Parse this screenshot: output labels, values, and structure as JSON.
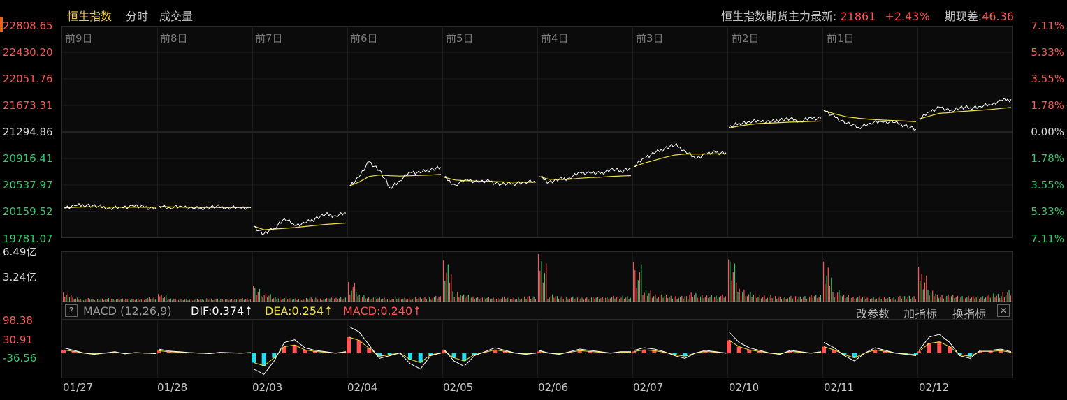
{
  "tabs": [
    {
      "label": "恒生指数",
      "active": true
    },
    {
      "label": "分时",
      "active": false
    },
    {
      "label": "成交量",
      "active": false
    }
  ],
  "futures": {
    "label": "恒生指数期货主力最新:",
    "price": "21861",
    "change": "+2.43%",
    "basis_label": "期现差:",
    "basis": "46.36"
  },
  "colors": {
    "up": "#ff5555",
    "down": "#2ecc6f",
    "price_line": "#ffffff",
    "avg_line": "#f0e040",
    "dea_line": "#f0e040",
    "macd_pos": "#ff5555",
    "macd_neg": "#22ddee"
  },
  "chart_data": [
    {
      "type": "line",
      "name": "price",
      "y_ticks_left": [
        "22808.65",
        "22430.20",
        "22051.76",
        "21673.31",
        "21294.86",
        "20916.41",
        "20537.97",
        "20159.52",
        "19781.07"
      ],
      "y_ticks_right": [
        "7.11%",
        "5.33%",
        "3.55%",
        "1.78%",
        "0.00%",
        "1.78%",
        "3.55%",
        "5.33%",
        "7.11%"
      ],
      "ylim": [
        19781.07,
        22808.65
      ],
      "reference": 21294.86,
      "day_labels": [
        "前9日",
        "前8日",
        "前7日",
        "前6日",
        "前5日",
        "前4日",
        "前3日",
        "前2日",
        "前1日"
      ],
      "x_dates": [
        "01/27",
        "01/28",
        "02/03",
        "02/04",
        "02/05",
        "02/06",
        "02/07",
        "02/10",
        "02/11",
        "02/12"
      ],
      "days": [
        {
          "date": "01/27",
          "price": [
            20210,
            20240,
            20250,
            20230,
            20210,
            20220,
            20240,
            20220,
            20210
          ],
          "avg": [
            20210,
            20220,
            20225,
            20225,
            20222,
            20220,
            20221,
            20220,
            20220
          ]
        },
        {
          "date": "01/28",
          "price": [
            20250,
            20210,
            20230,
            20200,
            20210,
            20230,
            20215,
            20220,
            20210
          ],
          "avg": [
            20230,
            20225,
            20222,
            20218,
            20216,
            20217,
            20216,
            20216,
            20215
          ]
        },
        {
          "date": "02/03",
          "price": [
            19950,
            19840,
            19920,
            20060,
            19960,
            19990,
            20060,
            20120,
            20100,
            20140
          ],
          "avg": [
            19950,
            19900,
            19910,
            19920,
            19930,
            19945,
            19960,
            19975,
            19985,
            19995
          ]
        },
        {
          "date": "02/04",
          "price": [
            20520,
            20650,
            20870,
            20750,
            20500,
            20600,
            20720,
            20710,
            20760,
            20790
          ],
          "avg": [
            20520,
            20580,
            20660,
            20680,
            20670,
            20665,
            20670,
            20675,
            20680,
            20690
          ]
        },
        {
          "date": "02/05",
          "price": [
            20650,
            20540,
            20620,
            20580,
            20590,
            20550,
            20560,
            20580,
            20580
          ],
          "avg": [
            20650,
            20610,
            20600,
            20595,
            20590,
            20585,
            20580,
            20579,
            20579
          ]
        },
        {
          "date": "02/06",
          "price": [
            20660,
            20580,
            20620,
            20640,
            20720,
            20710,
            20700,
            20760,
            20740,
            20780
          ],
          "avg": [
            20660,
            20620,
            20618,
            20620,
            20635,
            20645,
            20650,
            20660,
            20666,
            20672
          ]
        },
        {
          "date": "02/07",
          "price": [
            20800,
            20920,
            20990,
            21060,
            21110,
            21030,
            20920,
            20980,
            21000,
            21000
          ],
          "avg": [
            20800,
            20850,
            20890,
            20930,
            20965,
            20980,
            20980,
            20980,
            20982,
            20984
          ]
        },
        {
          "date": "02/10",
          "price": [
            21350,
            21420,
            21440,
            21450,
            21430,
            21470,
            21480,
            21450,
            21500,
            21490
          ],
          "avg": [
            21350,
            21380,
            21400,
            21415,
            21420,
            21428,
            21435,
            21438,
            21445,
            21450
          ]
        },
        {
          "date": "02/11",
          "price": [
            21600,
            21500,
            21420,
            21360,
            21420,
            21440,
            21430,
            21390,
            21330
          ],
          "avg": [
            21600,
            21550,
            21510,
            21490,
            21475,
            21465,
            21458,
            21450,
            21440
          ]
        },
        {
          "date": "02/12",
          "price": [
            21480,
            21580,
            21650,
            21590,
            21640,
            21640,
            21660,
            21680,
            21740,
            21760
          ],
          "avg": [
            21480,
            21520,
            21560,
            21570,
            21585,
            21595,
            21605,
            21615,
            21630,
            21645
          ]
        }
      ]
    },
    {
      "type": "bar",
      "name": "volume",
      "y_ticks": [
        "6.49亿",
        "3.24亿"
      ],
      "ylim": [
        0,
        6.49
      ],
      "unit": "亿",
      "day_volumes": [
        [
          1.2,
          0.6,
          0.5,
          0.4,
          0.5,
          0.4,
          0.5,
          0.4,
          0.5,
          0.6
        ],
        [
          1.0,
          0.5,
          0.4,
          0.4,
          0.4,
          0.5,
          0.4,
          0.4,
          0.5,
          0.5
        ],
        [
          2.1,
          1.1,
          0.7,
          0.6,
          0.5,
          0.5,
          0.6,
          0.5,
          0.6,
          0.7
        ],
        [
          2.6,
          1.0,
          0.7,
          0.6,
          0.5,
          0.6,
          0.6,
          0.6,
          0.7,
          0.8
        ],
        [
          5.5,
          1.6,
          1.0,
          0.8,
          0.7,
          0.6,
          0.7,
          0.6,
          0.7,
          0.8
        ],
        [
          6.3,
          1.0,
          0.8,
          0.7,
          0.6,
          0.7,
          0.7,
          0.8,
          0.8,
          0.9
        ],
        [
          5.2,
          1.7,
          1.2,
          1.0,
          0.9,
          0.8,
          1.4,
          0.9,
          1.0,
          1.0
        ],
        [
          5.6,
          2.0,
          1.3,
          1.0,
          0.9,
          0.8,
          0.8,
          0.8,
          0.9,
          1.0
        ],
        [
          5.3,
          1.6,
          1.0,
          0.8,
          0.8,
          0.7,
          0.7,
          0.7,
          0.8,
          0.9
        ],
        [
          4.6,
          1.6,
          1.1,
          1.0,
          0.9,
          0.8,
          0.9,
          1.0,
          1.2,
          1.6
        ]
      ]
    },
    {
      "type": "line",
      "name": "MACD",
      "label": "MACD (12,26,9)",
      "dif_label": "DIF:0.374↑",
      "dea_label": "DEA:0.254↑",
      "macd_label": "MACD:0.240↑",
      "y_ticks": [
        "98.38",
        "30.91",
        "-36.56"
      ],
      "ylim": [
        -90,
        120
      ],
      "day_dif": [
        [
          20,
          10,
          0,
          -5,
          0,
          5,
          -3,
          2,
          0,
          -2
        ],
        [
          15,
          8,
          5,
          2,
          0,
          -2,
          3,
          1,
          0,
          2
        ],
        [
          -60,
          -80,
          -30,
          40,
          50,
          20,
          10,
          5,
          0,
          5
        ],
        [
          100,
          80,
          30,
          -20,
          -10,
          0,
          -40,
          -60,
          -10,
          0
        ],
        [
          15,
          -30,
          -50,
          -10,
          5,
          20,
          10,
          0,
          -5,
          0
        ],
        [
          10,
          0,
          -5,
          5,
          15,
          10,
          5,
          0,
          5,
          5
        ],
        [
          10,
          20,
          15,
          5,
          -10,
          -20,
          0,
          10,
          5,
          0
        ],
        [
          80,
          40,
          20,
          10,
          0,
          -5,
          10,
          5,
          0,
          5
        ],
        [
          40,
          20,
          -10,
          -30,
          0,
          20,
          10,
          0,
          -5,
          -10
        ],
        [
          10,
          60,
          70,
          40,
          -10,
          -20,
          10,
          10,
          15,
          5
        ]
      ]
    }
  ],
  "macd_toolbar": {
    "help": "?",
    "params": "改参数",
    "add_indicator": "加指标",
    "switch_indicator": "换指标",
    "close": "✕"
  }
}
